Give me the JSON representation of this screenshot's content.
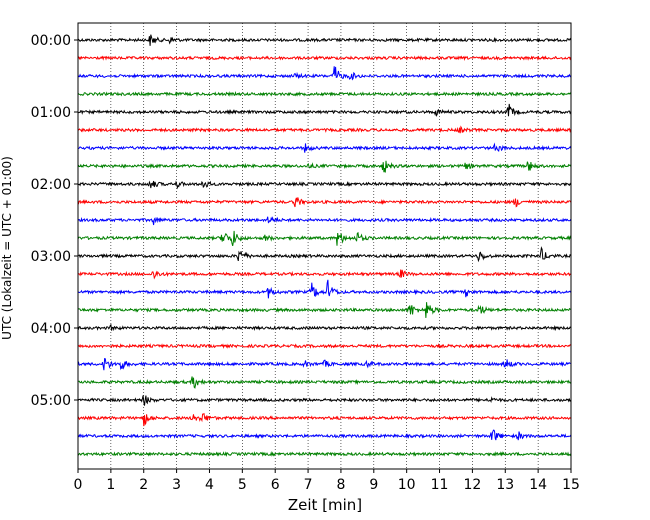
{
  "chart_data": {
    "type": "line",
    "title": "",
    "xlabel": "Zeit  [min]",
    "ylabel": "UTC (Lokalzeit = UTC + 01:00)",
    "xlim": [
      0,
      15
    ],
    "x_ticks": [
      "0",
      "1",
      "2",
      "3",
      "4",
      "5",
      "6",
      "7",
      "8",
      "9",
      "10",
      "11",
      "12",
      "13",
      "14",
      "15"
    ],
    "y_ticks": [
      "00:00",
      "01:00",
      "02:00",
      "03:00",
      "04:00",
      "05:00"
    ],
    "grid": "vertical dotted",
    "trace_colors": [
      "#000000",
      "#ff0000",
      "#0000ff",
      "#008000"
    ],
    "series": [
      {
        "start": "00:00",
        "color": "#000000",
        "events": [
          {
            "t": 2.2,
            "amp": 0.6
          },
          {
            "t": 2.8,
            "amp": 0.3
          }
        ]
      },
      {
        "start": "00:15",
        "color": "#ff0000",
        "events": []
      },
      {
        "start": "00:30",
        "color": "#0000ff",
        "events": [
          {
            "t": 6.6,
            "amp": 0.2
          },
          {
            "t": 7.8,
            "amp": 1.1
          },
          {
            "t": 8.3,
            "amp": 0.4
          }
        ]
      },
      {
        "start": "00:45",
        "color": "#008000",
        "events": []
      },
      {
        "start": "01:00",
        "color": "#000000",
        "events": [
          {
            "t": 10.9,
            "amp": 0.3
          },
          {
            "t": 13.1,
            "amp": 0.8
          }
        ]
      },
      {
        "start": "01:15",
        "color": "#ff0000",
        "events": [
          {
            "t": 11.6,
            "amp": 0.3
          }
        ]
      },
      {
        "start": "01:30",
        "color": "#0000ff",
        "events": [
          {
            "t": 6.9,
            "amp": 0.4
          },
          {
            "t": 12.7,
            "amp": 0.5
          }
        ]
      },
      {
        "start": "01:45",
        "color": "#008000",
        "events": [
          {
            "t": 7.0,
            "amp": 0.2
          },
          {
            "t": 9.3,
            "amp": 0.8
          },
          {
            "t": 11.8,
            "amp": 0.3
          },
          {
            "t": 13.7,
            "amp": 0.6
          }
        ]
      },
      {
        "start": "02:00",
        "color": "#000000",
        "events": [
          {
            "t": 2.2,
            "amp": 0.6
          },
          {
            "t": 3.0,
            "amp": 0.3
          },
          {
            "t": 3.8,
            "amp": 0.5
          }
        ]
      },
      {
        "start": "02:15",
        "color": "#ff0000",
        "events": [
          {
            "t": 6.6,
            "amp": 0.7
          },
          {
            "t": 13.3,
            "amp": 0.5
          }
        ]
      },
      {
        "start": "02:30",
        "color": "#0000ff",
        "events": [
          {
            "t": 2.3,
            "amp": 0.4
          },
          {
            "t": 5.8,
            "amp": 0.4
          }
        ]
      },
      {
        "start": "02:45",
        "color": "#008000",
        "events": [
          {
            "t": 4.4,
            "amp": 1.0
          },
          {
            "t": 4.7,
            "amp": 0.9
          },
          {
            "t": 5.7,
            "amp": 0.3
          },
          {
            "t": 7.9,
            "amp": 1.0
          },
          {
            "t": 8.5,
            "amp": 0.6
          }
        ]
      },
      {
        "start": "03:00",
        "color": "#000000",
        "events": [
          {
            "t": 4.9,
            "amp": 0.9
          },
          {
            "t": 12.2,
            "amp": 0.6
          },
          {
            "t": 14.1,
            "amp": 0.7
          }
        ]
      },
      {
        "start": "03:15",
        "color": "#ff0000",
        "events": [
          {
            "t": 2.3,
            "amp": 0.5
          },
          {
            "t": 9.8,
            "amp": 0.5
          }
        ]
      },
      {
        "start": "03:30",
        "color": "#0000ff",
        "events": [
          {
            "t": 5.8,
            "amp": 0.6
          },
          {
            "t": 7.1,
            "amp": 1.0
          },
          {
            "t": 7.6,
            "amp": 1.2
          },
          {
            "t": 11.8,
            "amp": 0.4
          }
        ]
      },
      {
        "start": "03:45",
        "color": "#008000",
        "events": [
          {
            "t": 10.1,
            "amp": 0.8
          },
          {
            "t": 10.6,
            "amp": 1.0
          },
          {
            "t": 12.2,
            "amp": 0.6
          }
        ]
      },
      {
        "start": "04:00",
        "color": "#000000",
        "events": [
          {
            "t": 1.0,
            "amp": 0.2
          }
        ]
      },
      {
        "start": "04:15",
        "color": "#ff0000",
        "events": []
      },
      {
        "start": "04:30",
        "color": "#0000ff",
        "events": [
          {
            "t": 0.8,
            "amp": 0.8
          },
          {
            "t": 1.3,
            "amp": 0.6
          },
          {
            "t": 6.9,
            "amp": 0.3
          },
          {
            "t": 7.5,
            "amp": 0.3
          },
          {
            "t": 8.8,
            "amp": 0.3
          },
          {
            "t": 13.0,
            "amp": 0.6
          }
        ]
      },
      {
        "start": "04:45",
        "color": "#008000",
        "events": [
          {
            "t": 3.5,
            "amp": 0.8
          }
        ]
      },
      {
        "start": "05:00",
        "color": "#000000",
        "events": [
          {
            "t": 2.0,
            "amp": 0.6
          },
          {
            "t": 12.5,
            "amp": 0.3
          }
        ]
      },
      {
        "start": "05:15",
        "color": "#ff0000",
        "events": [
          {
            "t": 2.0,
            "amp": 0.8
          },
          {
            "t": 3.5,
            "amp": 0.6
          },
          {
            "t": 3.8,
            "amp": 0.5
          }
        ]
      },
      {
        "start": "05:30",
        "color": "#0000ff",
        "events": [
          {
            "t": 12.6,
            "amp": 0.9
          },
          {
            "t": 13.4,
            "amp": 0.4
          }
        ]
      },
      {
        "start": "05:45",
        "color": "#008000",
        "events": []
      }
    ]
  }
}
